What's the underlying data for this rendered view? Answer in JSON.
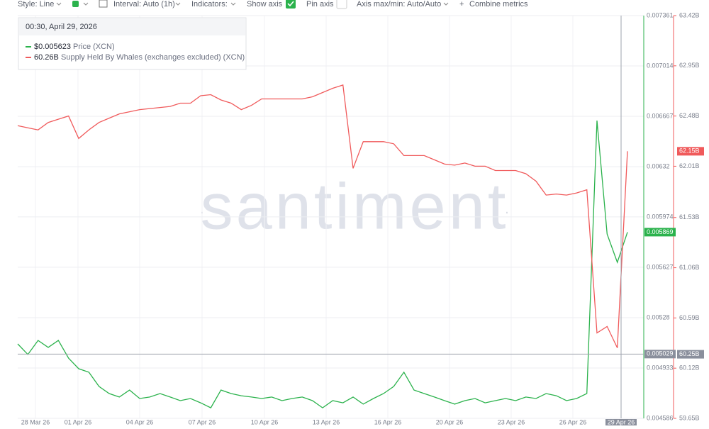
{
  "toolbar": {
    "style": "Style: Line",
    "interval": "Interval: Auto (1h)",
    "indicators": "Indicators:",
    "show_axis": "Show axis",
    "pin_axis": "Pin axis",
    "axis_minmax": "Axis max/min: Auto/Auto",
    "combine": "Combine metrics"
  },
  "tooltip": {
    "date": "00:30, April 29, 2026",
    "price": "$0.005623",
    "supply": "60.26B"
  },
  "watermark": "santiment",
  "chart_data": {
    "type": "line",
    "x_labels": [
      "28 Mar 26",
      "01 Apr 26",
      "04 Apr 26",
      "07 Apr 26",
      "10 Apr 26",
      "13 Apr 26",
      "16 Apr 26",
      "20 Apr 26",
      "23 Apr 26",
      "26 Apr 26"
    ],
    "series": [
      {
        "name": "Price (XCN)",
        "color": "#2bb24c",
        "values": [
          0.005099,
          0.005026,
          0.005123,
          0.005075,
          0.005123,
          0.005001,
          0.004928,
          0.004904,
          0.004806,
          0.004757,
          0.004733,
          0.004781,
          0.004723,
          0.004733,
          0.004757,
          0.004733,
          0.004708,
          0.004723,
          0.004693,
          0.004659,
          0.004781,
          0.004757,
          0.004742,
          0.004733,
          0.004723,
          0.004733,
          0.004708,
          0.004723,
          0.004733,
          0.004708,
          0.004659,
          0.004708,
          0.004693,
          0.004733,
          0.004684,
          0.004723,
          0.004757,
          0.004806,
          0.004904,
          0.004781,
          0.004757,
          0.004733,
          0.004708,
          0.004684,
          0.004708,
          0.004723,
          0.004693,
          0.004708,
          0.004723,
          0.004708,
          0.004733,
          0.004723,
          0.004757,
          0.004742,
          0.004708,
          0.004723,
          0.004757,
          0.006638,
          0.005856,
          0.005661,
          0.005869
        ]
      },
      {
        "name": "Supply Held By Whales (exchanges excluded) (XCN)",
        "color": "#f05a5b",
        "axis": "y2",
        "values": [
          62.39,
          62.37,
          62.35,
          62.42,
          62.45,
          62.48,
          62.27,
          62.35,
          62.42,
          62.46,
          62.5,
          62.52,
          62.54,
          62.55,
          62.56,
          62.57,
          62.6,
          62.6,
          62.67,
          62.68,
          62.63,
          62.6,
          62.54,
          62.58,
          62.64,
          62.64,
          62.64,
          62.64,
          62.64,
          62.66,
          62.7,
          62.74,
          62.77,
          61.99,
          62.24,
          62.24,
          62.24,
          62.22,
          62.11,
          62.11,
          62.11,
          62.07,
          62.03,
          62.02,
          62.04,
          62.01,
          62.01,
          61.97,
          61.97,
          61.97,
          61.94,
          61.87,
          61.74,
          61.75,
          61.74,
          61.76,
          61.79,
          60.45,
          60.51,
          60.31,
          62.15
        ]
      }
    ],
    "ylim": [
      0.004586,
      0.007361
    ],
    "yticks": [
      0.004586,
      0.004933,
      0.00528,
      0.005627,
      0.005974,
      0.00632,
      0.006667,
      0.007014,
      0.007361
    ],
    "y2lim": [
      59.65,
      63.42
    ],
    "y2ticks": [
      {
        "value": 59.65,
        "label": "59.65B"
      },
      {
        "value": 60.12,
        "label": "60.12B"
      },
      {
        "value": 60.59,
        "label": "60.59B"
      },
      {
        "value": 61.06,
        "label": "61.06B"
      },
      {
        "value": 61.53,
        "label": "61.53B"
      },
      {
        "value": 62.01,
        "label": "62.01B"
      },
      {
        "value": 62.48,
        "label": "62.48B"
      },
      {
        "value": 62.95,
        "label": "62.95B"
      },
      {
        "value": 63.42,
        "label": "63.42B"
      }
    ],
    "last_price": 0.005869,
    "last_supply": {
      "value": 62.15,
      "label": "62.15B"
    },
    "crosshair": {
      "price": 0.005029,
      "supply": {
        "value": 60.25,
        "label": "60.25B"
      },
      "date": "29 Apr 26"
    },
    "grid": true
  }
}
